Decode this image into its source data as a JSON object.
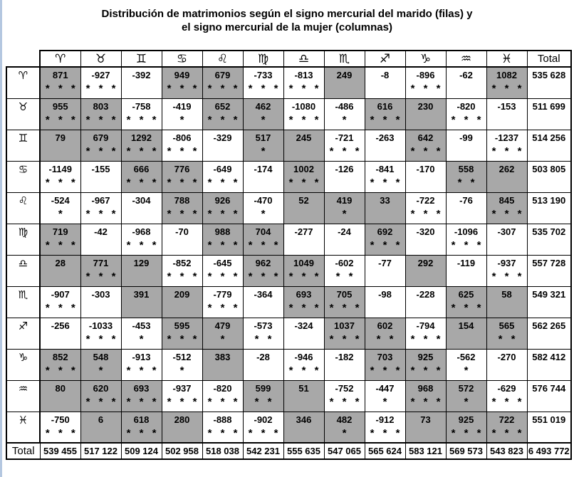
{
  "chart_data": {
    "type": "table",
    "title": "Distribución de matrimonios según el signo mercurial del marido (filas) y el signo mercurial de la mujer (columnas)",
    "title_lines": {
      "line1": "Distribución de matrimonios según el signo mercurial del marido (filas) y",
      "line2": "el signo mercurial de la mujer (columnas)"
    },
    "total_label": "Total",
    "signs": [
      "♈",
      "♉",
      "♊",
      "♋",
      "♌",
      "♍",
      "♎",
      "♏",
      "♐",
      "♑",
      "♒",
      "♓"
    ],
    "sign_names": [
      "aries",
      "taurus",
      "gemini",
      "cancer",
      "leo",
      "virgo",
      "libra",
      "scorpio",
      "sagittarius",
      "capricorn",
      "aquarius",
      "pisces"
    ],
    "cell_format": "[value, star_count]; positive values shown on shaded background",
    "cells": [
      [
        [
          871,
          3
        ],
        [
          -927,
          3
        ],
        [
          -392,
          0
        ],
        [
          949,
          3
        ],
        [
          679,
          3
        ],
        [
          -733,
          3
        ],
        [
          -813,
          3
        ],
        [
          249,
          0
        ],
        [
          -8,
          0
        ],
        [
          -896,
          3
        ],
        [
          -62,
          0
        ],
        [
          1082,
          3
        ]
      ],
      [
        [
          955,
          3
        ],
        [
          803,
          3
        ],
        [
          -758,
          3
        ],
        [
          -419,
          1
        ],
        [
          652,
          3
        ],
        [
          462,
          1
        ],
        [
          -1080,
          3
        ],
        [
          -486,
          1
        ],
        [
          616,
          3
        ],
        [
          230,
          0
        ],
        [
          -820,
          3
        ],
        [
          -153,
          0
        ]
      ],
      [
        [
          79,
          0
        ],
        [
          679,
          3
        ],
        [
          1292,
          3
        ],
        [
          -806,
          3
        ],
        [
          -329,
          0
        ],
        [
          517,
          1
        ],
        [
          245,
          0
        ],
        [
          -721,
          3
        ],
        [
          -263,
          0
        ],
        [
          642,
          3
        ],
        [
          -99,
          0
        ],
        [
          -1237,
          3
        ]
      ],
      [
        [
          -1149,
          3
        ],
        [
          -155,
          0
        ],
        [
          666,
          3
        ],
        [
          776,
          3
        ],
        [
          -649,
          3
        ],
        [
          -174,
          0
        ],
        [
          1002,
          3
        ],
        [
          -126,
          0
        ],
        [
          -841,
          3
        ],
        [
          -170,
          0
        ],
        [
          558,
          2
        ],
        [
          262,
          0
        ]
      ],
      [
        [
          -524,
          1
        ],
        [
          -967,
          3
        ],
        [
          -304,
          0
        ],
        [
          788,
          3
        ],
        [
          926,
          3
        ],
        [
          -470,
          1
        ],
        [
          52,
          0
        ],
        [
          419,
          1
        ],
        [
          33,
          0
        ],
        [
          -722,
          3
        ],
        [
          -76,
          0
        ],
        [
          845,
          3
        ]
      ],
      [
        [
          719,
          3
        ],
        [
          -42,
          0
        ],
        [
          -968,
          3
        ],
        [
          -70,
          0
        ],
        [
          988,
          3
        ],
        [
          704,
          3
        ],
        [
          -277,
          0
        ],
        [
          -24,
          0
        ],
        [
          692,
          3
        ],
        [
          -320,
          0
        ],
        [
          -1096,
          3
        ],
        [
          -307,
          0
        ]
      ],
      [
        [
          28,
          0
        ],
        [
          771,
          3
        ],
        [
          129,
          0
        ],
        [
          -852,
          3
        ],
        [
          -645,
          3
        ],
        [
          962,
          3
        ],
        [
          1049,
          3
        ],
        [
          -602,
          2
        ],
        [
          -77,
          0
        ],
        [
          292,
          0
        ],
        [
          -119,
          0
        ],
        [
          -937,
          3
        ]
      ],
      [
        [
          -907,
          3
        ],
        [
          -303,
          0
        ],
        [
          391,
          0
        ],
        [
          209,
          0
        ],
        [
          -779,
          3
        ],
        [
          -364,
          0
        ],
        [
          693,
          3
        ],
        [
          705,
          3
        ],
        [
          -98,
          0
        ],
        [
          -228,
          0
        ],
        [
          625,
          3
        ],
        [
          58,
          0
        ]
      ],
      [
        [
          -256,
          0
        ],
        [
          -1033,
          3
        ],
        [
          -453,
          1
        ],
        [
          595,
          3
        ],
        [
          479,
          1
        ],
        [
          -573,
          2
        ],
        [
          -324,
          0
        ],
        [
          1037,
          3
        ],
        [
          602,
          2
        ],
        [
          -794,
          3
        ],
        [
          154,
          0
        ],
        [
          565,
          2
        ]
      ],
      [
        [
          852,
          3
        ],
        [
          548,
          1
        ],
        [
          -913,
          3
        ],
        [
          -512,
          1
        ],
        [
          383,
          0
        ],
        [
          -28,
          0
        ],
        [
          -946,
          3
        ],
        [
          -182,
          0
        ],
        [
          703,
          3
        ],
        [
          925,
          3
        ],
        [
          -562,
          1
        ],
        [
          -270,
          0
        ]
      ],
      [
        [
          80,
          0
        ],
        [
          620,
          3
        ],
        [
          693,
          3
        ],
        [
          -937,
          3
        ],
        [
          -820,
          3
        ],
        [
          599,
          2
        ],
        [
          51,
          0
        ],
        [
          -752,
          3
        ],
        [
          -447,
          1
        ],
        [
          968,
          3
        ],
        [
          572,
          1
        ],
        [
          -629,
          3
        ]
      ],
      [
        [
          -750,
          3
        ],
        [
          6,
          0
        ],
        [
          618,
          3
        ],
        [
          280,
          0
        ],
        [
          -888,
          3
        ],
        [
          -902,
          3
        ],
        [
          346,
          0
        ],
        [
          482,
          1
        ],
        [
          -912,
          3
        ],
        [
          73,
          0
        ],
        [
          925,
          3
        ],
        [
          722,
          3
        ]
      ]
    ],
    "row_totals": [
      "535 628",
      "511 699",
      "514 256",
      "503 805",
      "513 190",
      "535 702",
      "557 728",
      "549 321",
      "562 265",
      "582 412",
      "576 744",
      "551 019"
    ],
    "col_totals": [
      "539 455",
      "517 122",
      "509 124",
      "502 958",
      "518 038",
      "542 231",
      "555 635",
      "547 065",
      "565 624",
      "583 121",
      "569 573",
      "543 823"
    ],
    "grand_total": "6 493 772",
    "colors": {
      "shaded_cell": "#a8a8a8",
      "table_border": "#000000",
      "left_strip": "#b4c7e0",
      "text": "#000000"
    }
  }
}
